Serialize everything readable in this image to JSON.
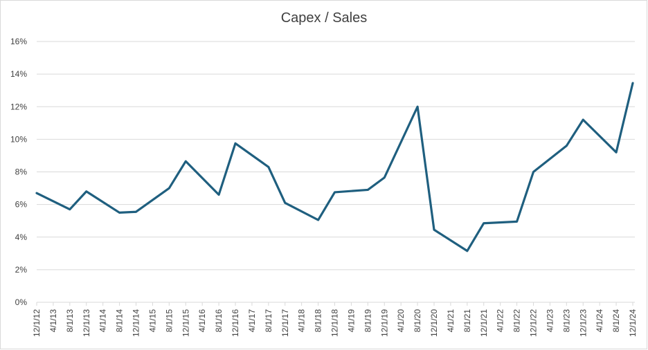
{
  "chart_data": {
    "type": "line",
    "title": "Capex / Sales",
    "xlabel": "",
    "ylabel": "",
    "ylim": [
      0,
      16
    ],
    "y_ticks": [
      "0%",
      "2%",
      "4%",
      "6%",
      "8%",
      "10%",
      "12%",
      "14%",
      "16%"
    ],
    "y_tick_values": [
      0,
      2,
      4,
      6,
      8,
      10,
      12,
      14,
      16
    ],
    "grid": true,
    "legend": "none",
    "categories": [
      "12/1/12",
      "4/1/13",
      "8/1/13",
      "12/1/13",
      "4/1/14",
      "8/1/14",
      "12/1/14",
      "4/1/15",
      "8/1/15",
      "12/1/15",
      "4/1/16",
      "8/1/16",
      "12/1/16",
      "4/1/17",
      "8/1/17",
      "12/1/17",
      "4/1/18",
      "8/1/18",
      "12/1/18",
      "4/1/19",
      "8/1/19",
      "12/1/19",
      "4/1/20",
      "8/1/20",
      "12/1/20",
      "4/1/21",
      "8/1/21",
      "12/1/21",
      "4/1/22",
      "8/1/22",
      "12/1/22",
      "4/1/23",
      "8/1/23",
      "12/1/23",
      "4/1/24",
      "8/1/24",
      "12/1/24"
    ],
    "series": [
      {
        "color": "#1f5f7f",
        "points": [
          {
            "x": "12/1/12",
            "y": 6.7
          },
          {
            "x": "8/1/13",
            "y": 5.7
          },
          {
            "x": "12/1/13",
            "y": 6.8
          },
          {
            "x": "8/1/14",
            "y": 5.5
          },
          {
            "x": "12/1/14",
            "y": 5.55
          },
          {
            "x": "8/1/15",
            "y": 7.0
          },
          {
            "x": "12/1/15",
            "y": 8.65
          },
          {
            "x": "8/1/16",
            "y": 6.6
          },
          {
            "x": "12/1/16",
            "y": 9.75
          },
          {
            "x": "8/1/17",
            "y": 8.3
          },
          {
            "x": "12/1/17",
            "y": 6.1
          },
          {
            "x": "8/1/18",
            "y": 5.05
          },
          {
            "x": "12/1/18",
            "y": 6.75
          },
          {
            "x": "8/1/19",
            "y": 6.9
          },
          {
            "x": "12/1/19",
            "y": 7.65
          },
          {
            "x": "8/1/20",
            "y": 12.0
          },
          {
            "x": "12/1/20",
            "y": 4.45
          },
          {
            "x": "8/1/21",
            "y": 3.15
          },
          {
            "x": "12/1/21",
            "y": 4.85
          },
          {
            "x": "8/1/22",
            "y": 4.95
          },
          {
            "x": "12/1/22",
            "y": 8.0
          },
          {
            "x": "8/1/23",
            "y": 9.6
          },
          {
            "x": "12/1/23",
            "y": 11.2
          },
          {
            "x": "8/1/24",
            "y": 9.2
          },
          {
            "x": "12/1/24",
            "y": 13.45
          }
        ]
      }
    ]
  }
}
